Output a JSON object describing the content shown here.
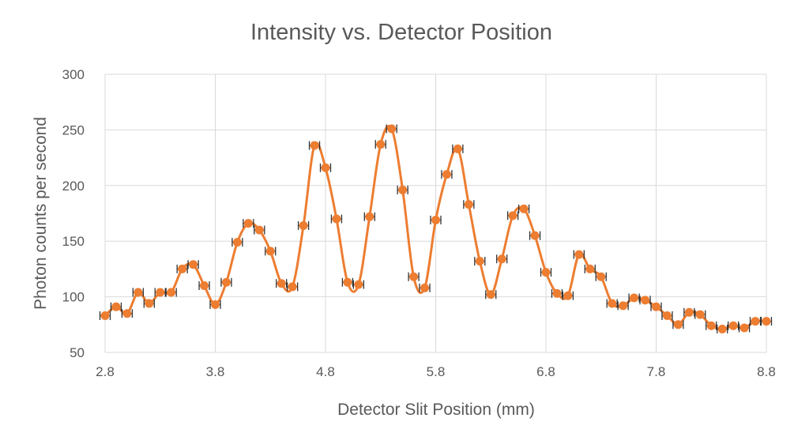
{
  "chart_data": {
    "type": "scatter",
    "title": "Intensity vs. Detector Position",
    "xlabel": "Detector Slit Position (mm)",
    "ylabel": "Photon counts per second",
    "xlim": [
      2.8,
      8.8
    ],
    "ylim": [
      50,
      300
    ],
    "x_ticks": [
      "2.8",
      "3.8",
      "4.8",
      "5.8",
      "6.8",
      "7.8",
      "8.8"
    ],
    "y_ticks": [
      "50",
      "100",
      "150",
      "200",
      "250",
      "300"
    ],
    "grid": true,
    "line_style": "smoothed line with markers",
    "error_bars": true,
    "series_color": "#ED7D31",
    "series": [
      {
        "x": [
          2.8,
          2.9,
          3.0,
          3.1,
          3.2,
          3.3,
          3.4,
          3.5,
          3.6,
          3.7,
          3.8,
          3.9,
          4.0,
          4.1,
          4.2,
          4.3,
          4.4,
          4.5,
          4.6,
          4.7,
          4.8,
          4.9,
          5.0,
          5.1,
          5.2,
          5.3,
          5.4,
          5.5,
          5.6,
          5.7,
          5.8,
          5.9,
          6.0,
          6.1,
          6.2,
          6.3,
          6.4,
          6.5,
          6.6,
          6.7,
          6.8,
          6.9,
          7.0,
          7.1,
          7.2,
          7.3,
          7.4,
          7.5,
          7.6,
          7.7,
          7.8,
          7.9,
          8.0,
          8.1,
          8.2,
          8.3,
          8.4,
          8.5,
          8.6,
          8.7,
          8.8
        ],
        "y": [
          83,
          91,
          85,
          104,
          94,
          104,
          104,
          125,
          129,
          110,
          93,
          113,
          149,
          166,
          160,
          141,
          112,
          109,
          164,
          236,
          216,
          170,
          113,
          111,
          172,
          237,
          251,
          196,
          118,
          108,
          169,
          210,
          233,
          183,
          132,
          102,
          134,
          173,
          179,
          155,
          122,
          103,
          101,
          138,
          125,
          118,
          94,
          92,
          99,
          97,
          91,
          83,
          75,
          86,
          84,
          74,
          71,
          74,
          72,
          78,
          78
        ]
      }
    ]
  }
}
